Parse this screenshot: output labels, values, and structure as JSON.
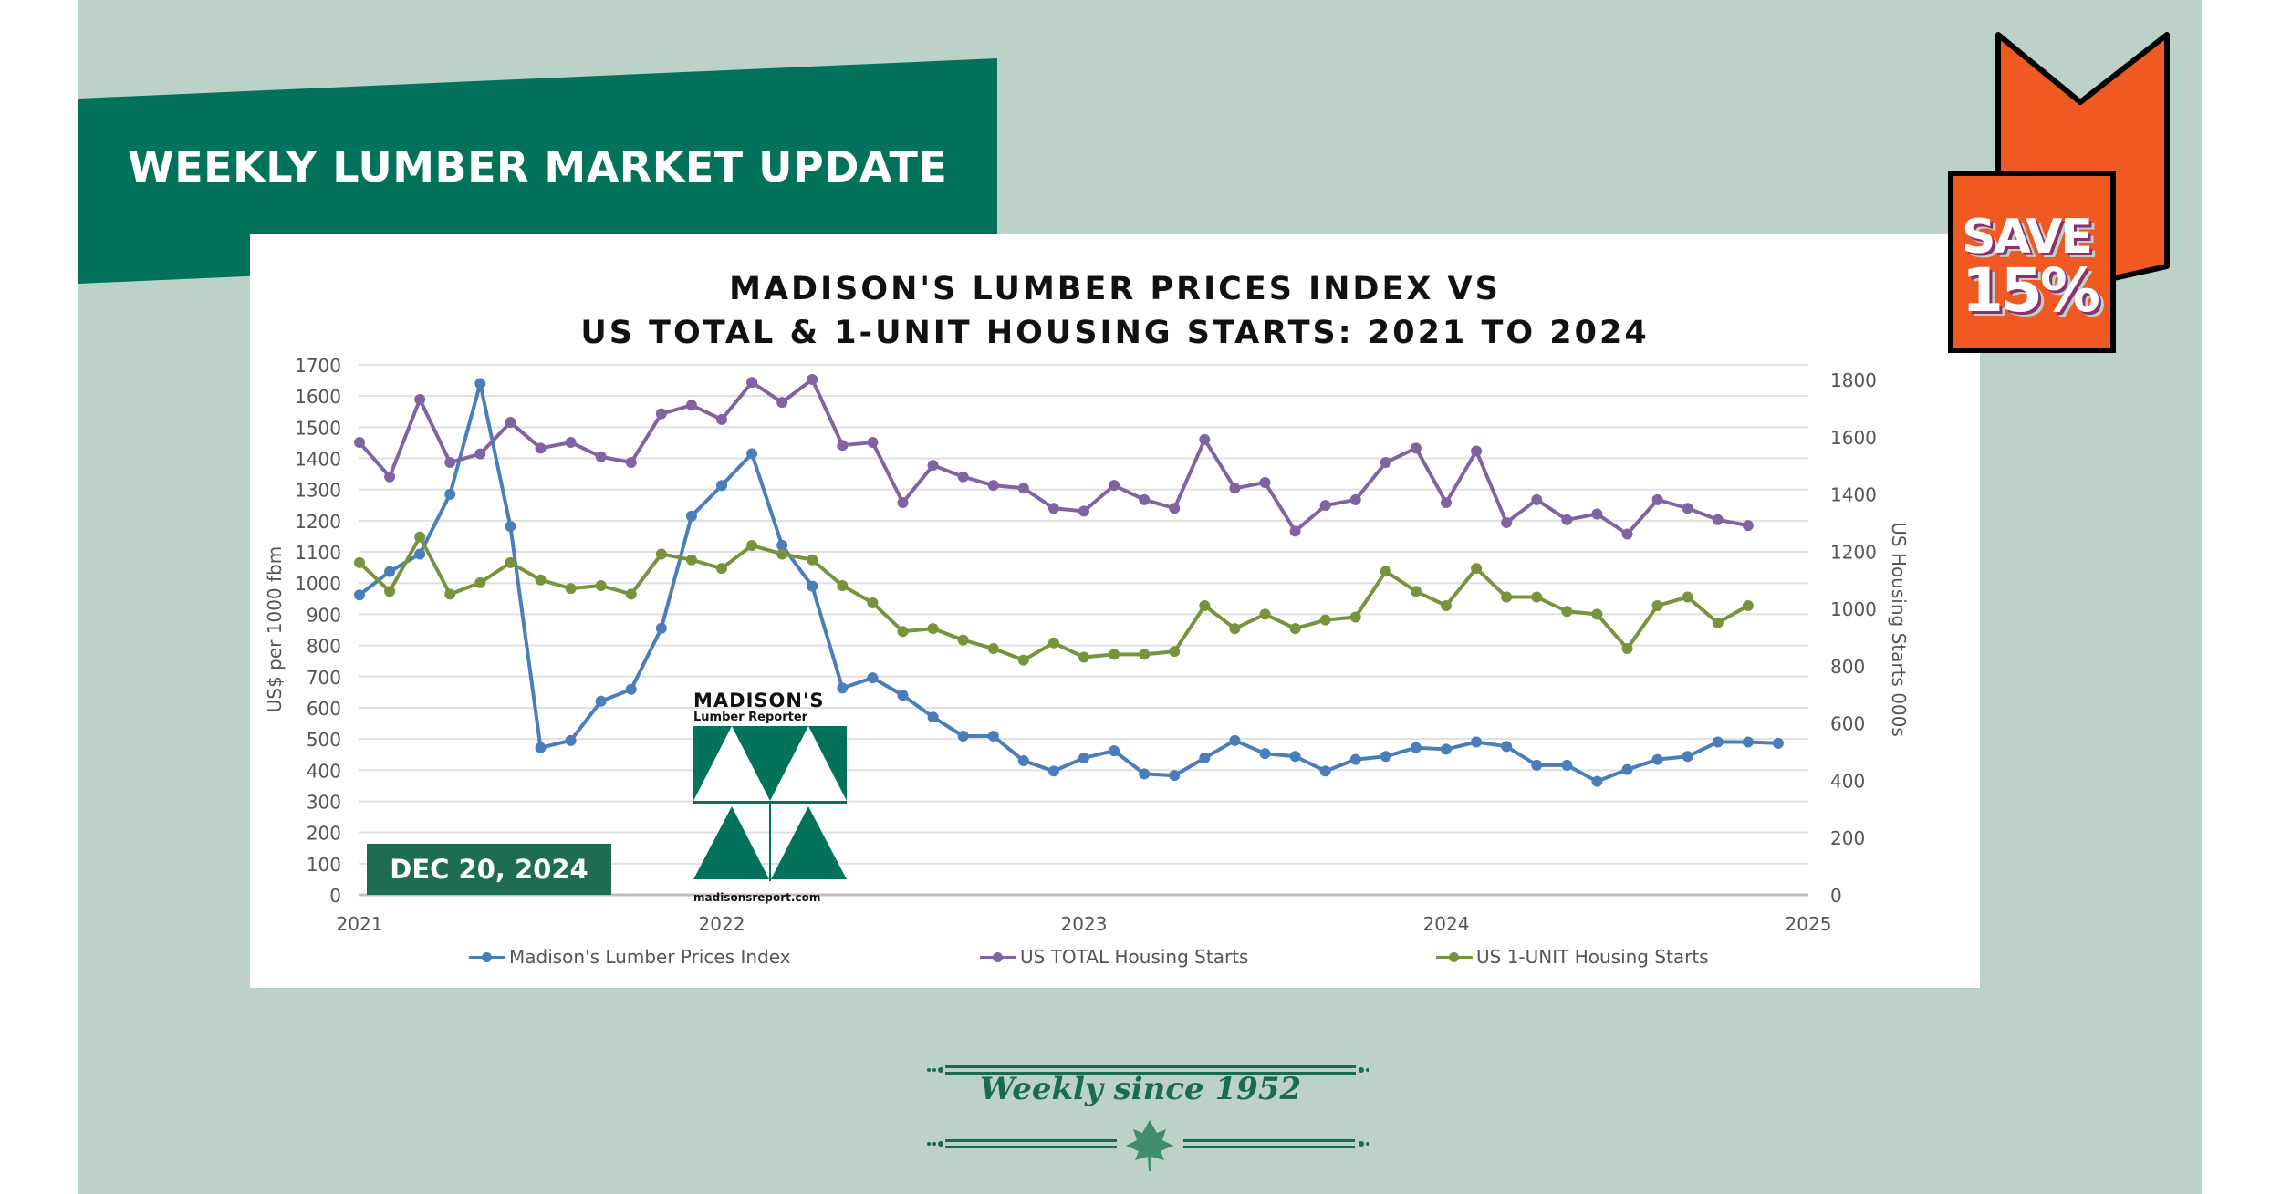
{
  "banner": {
    "title": "WEEKLY LUMBER MARKET UPDATE",
    "color": "#02735a"
  },
  "promo_badge": {
    "line1": "SAVE",
    "line2": "15%",
    "color": "#f05a22"
  },
  "chart": {
    "title_line1": "MADISON'S LUMBER PRICES INDEX VS",
    "title_line2": "US TOTAL & 1-UNIT HOUSING STARTS: 2021 TO 2024",
    "left_axis_label": "US$ per 1000 fbm",
    "right_axis_label": "US Housing Starts 000s",
    "date_badge": "DEC 20, 2024",
    "legend": [
      {
        "label": "Madison's Lumber Prices Index",
        "color": "#4a7ebb"
      },
      {
        "label": "US TOTAL Housing Starts",
        "color": "#8064a2"
      },
      {
        "label": "US 1-UNIT Housing Starts",
        "color": "#77933c"
      }
    ]
  },
  "logo": {
    "name": "MADISON'S",
    "subtitle": "Lumber Reporter",
    "url": "madisonsreport.com"
  },
  "footer": {
    "tagline": "Weekly since 1952"
  },
  "chart_data": {
    "type": "line",
    "title": "MADISON'S LUMBER PRICES INDEX VS US TOTAL & 1-UNIT HOUSING STARTS: 2021 TO 2024",
    "xlabel": "",
    "ylabel": "US$ per 1000 fbm",
    "y2label": "US Housing Starts 000s",
    "x_ticks": [
      "2021",
      "2022",
      "2023",
      "2024",
      "2025"
    ],
    "ylim": [
      0,
      1700
    ],
    "y_ticks": [
      0,
      100,
      200,
      300,
      400,
      500,
      600,
      700,
      800,
      900,
      1000,
      1100,
      1200,
      1300,
      1400,
      1500,
      1600,
      1700
    ],
    "y2lim": [
      0,
      1800
    ],
    "y2_ticks": [
      0,
      200,
      400,
      600,
      800,
      1000,
      1200,
      1400,
      1600,
      1800
    ],
    "grid": true,
    "legend_position": "bottom",
    "x": [
      "2021-01",
      "2021-02",
      "2021-03",
      "2021-04",
      "2021-05",
      "2021-06",
      "2021-07",
      "2021-08",
      "2021-09",
      "2021-10",
      "2021-11",
      "2021-12",
      "2022-01",
      "2022-02",
      "2022-03",
      "2022-04",
      "2022-05",
      "2022-06",
      "2022-07",
      "2022-08",
      "2022-09",
      "2022-10",
      "2022-11",
      "2022-12",
      "2023-01",
      "2023-02",
      "2023-03",
      "2023-04",
      "2023-05",
      "2023-06",
      "2023-07",
      "2023-08",
      "2023-09",
      "2023-10",
      "2023-11",
      "2023-12",
      "2024-01",
      "2024-02",
      "2024-03",
      "2024-04",
      "2024-05",
      "2024-06",
      "2024-07",
      "2024-08",
      "2024-09",
      "2024-10",
      "2024-11",
      "2024-12"
    ],
    "series": [
      {
        "name": "Madison's Lumber Prices Index",
        "axis": "left",
        "color": "#4a7ebb",
        "values": [
          962,
          1037,
          1093,
          1285,
          1640,
          1182,
          472,
          495,
          621,
          659,
          855,
          1215,
          1313,
          1415,
          1121,
          990,
          663,
          696,
          640,
          570,
          509,
          509,
          430,
          397,
          439,
          462,
          388,
          383,
          439,
          495,
          453,
          444,
          397,
          434,
          444,
          472,
          467,
          490,
          476,
          416,
          416,
          364,
          402,
          434,
          444,
          490,
          490,
          486
        ]
      },
      {
        "name": "US TOTAL Housing Starts",
        "axis": "right",
        "color": "#8064a2",
        "values": [
          1580,
          1460,
          1730,
          1510,
          1540,
          1650,
          1560,
          1580,
          1530,
          1510,
          1680,
          1710,
          1660,
          1790,
          1720,
          1800,
          1570,
          1580,
          1370,
          1500,
          1460,
          1430,
          1420,
          1350,
          1340,
          1430,
          1380,
          1350,
          1590,
          1420,
          1440,
          1270,
          1360,
          1380,
          1510,
          1560,
          1370,
          1550,
          1300,
          1380,
          1310,
          1330,
          1260,
          1380,
          1350,
          1310,
          1290
        ]
      },
      {
        "name": "US 1-UNIT Housing Starts",
        "axis": "right",
        "color": "#77933c",
        "values": [
          1160,
          1060,
          1250,
          1050,
          1090,
          1160,
          1100,
          1070,
          1080,
          1050,
          1190,
          1170,
          1140,
          1220,
          1190,
          1170,
          1080,
          1020,
          920,
          930,
          890,
          860,
          820,
          880,
          830,
          840,
          840,
          850,
          1010,
          930,
          980,
          930,
          960,
          970,
          1130,
          1060,
          1010,
          1140,
          1040,
          1040,
          990,
          980,
          860,
          1010,
          1040,
          950,
          1010
        ]
      }
    ]
  }
}
